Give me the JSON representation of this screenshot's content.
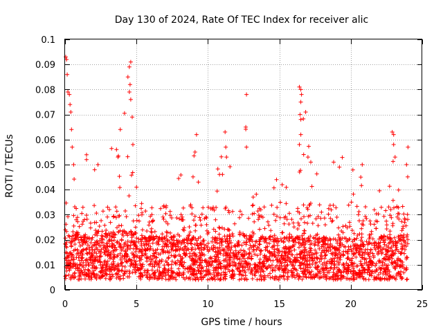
{
  "chart_data": {
    "type": "scatter",
    "title": "Day 130 of 2024, Rate Of TEC Index for receiver alic",
    "xlabel": "GPS time / hours",
    "ylabel": "ROTI / TECUs",
    "xlim": [
      0,
      25
    ],
    "ylim": [
      0,
      0.1
    ],
    "xticks": [
      0,
      5,
      10,
      15,
      20,
      25
    ],
    "xtick_labels": [
      "0",
      "5",
      "10",
      "15",
      "20",
      "25"
    ],
    "yticks": [
      0,
      0.01,
      0.02,
      0.03,
      0.04,
      0.05,
      0.06,
      0.07,
      0.08,
      0.09,
      0.1
    ],
    "ytick_labels": [
      "0",
      "0.01",
      "0.02",
      "0.03",
      "0.04",
      "0.05",
      "0.06",
      "0.07",
      "0.08",
      "0.09",
      "0.1"
    ],
    "grid": true,
    "marker": "+",
    "series": [
      {
        "name": "ROTI",
        "color": "#ff0000",
        "data_extent_hours": [
          0,
          24
        ],
        "envelope": [
          {
            "x": 0.0,
            "base": 0.012,
            "peak": 0.093
          },
          {
            "x": 0.3,
            "base": 0.011,
            "peak": 0.078
          },
          {
            "x": 1.0,
            "base": 0.011,
            "peak": 0.04
          },
          {
            "x": 1.5,
            "base": 0.01,
            "peak": 0.05
          },
          {
            "x": 2.5,
            "base": 0.01,
            "peak": 0.045
          },
          {
            "x": 3.5,
            "base": 0.011,
            "peak": 0.056
          },
          {
            "x": 4.5,
            "base": 0.012,
            "peak": 0.091
          },
          {
            "x": 5.5,
            "base": 0.01,
            "peak": 0.028
          },
          {
            "x": 7.0,
            "base": 0.009,
            "peak": 0.03
          },
          {
            "x": 8.0,
            "base": 0.01,
            "peak": 0.048
          },
          {
            "x": 9.0,
            "base": 0.009,
            "peak": 0.062
          },
          {
            "x": 10.0,
            "base": 0.008,
            "peak": 0.03
          },
          {
            "x": 11.0,
            "base": 0.01,
            "peak": 0.063
          },
          {
            "x": 12.0,
            "base": 0.01,
            "peak": 0.035
          },
          {
            "x": 12.7,
            "base": 0.01,
            "peak": 0.078
          },
          {
            "x": 13.5,
            "base": 0.01,
            "peak": 0.032
          },
          {
            "x": 15.0,
            "base": 0.009,
            "peak": 0.045
          },
          {
            "x": 16.0,
            "base": 0.009,
            "peak": 0.03
          },
          {
            "x": 16.5,
            "base": 0.01,
            "peak": 0.081
          },
          {
            "x": 17.5,
            "base": 0.009,
            "peak": 0.05
          },
          {
            "x": 18.5,
            "base": 0.009,
            "peak": 0.038
          },
          {
            "x": 19.0,
            "base": 0.009,
            "peak": 0.05
          },
          {
            "x": 20.5,
            "base": 0.009,
            "peak": 0.05
          },
          {
            "x": 21.5,
            "base": 0.009,
            "peak": 0.025
          },
          {
            "x": 23.0,
            "base": 0.01,
            "peak": 0.063
          },
          {
            "x": 24.0,
            "base": 0.01,
            "peak": 0.058
          }
        ],
        "outliers": [
          [
            0.05,
            0.093
          ],
          [
            0.1,
            0.092
          ],
          [
            0.15,
            0.086
          ],
          [
            0.2,
            0.079
          ],
          [
            0.3,
            0.078
          ],
          [
            0.35,
            0.074
          ],
          [
            0.4,
            0.071
          ],
          [
            0.45,
            0.064
          ],
          [
            0.5,
            0.057
          ],
          [
            0.6,
            0.05
          ],
          [
            4.4,
            0.085
          ],
          [
            4.5,
            0.089
          ],
          [
            4.6,
            0.091
          ],
          [
            4.55,
            0.082
          ],
          [
            4.5,
            0.079
          ],
          [
            4.6,
            0.076
          ],
          [
            4.7,
            0.069
          ],
          [
            4.75,
            0.058
          ],
          [
            3.6,
            0.056
          ],
          [
            3.7,
            0.053
          ],
          [
            9.2,
            0.062
          ],
          [
            9.1,
            0.055
          ],
          [
            11.2,
            0.063
          ],
          [
            11.25,
            0.057
          ],
          [
            11.3,
            0.053
          ],
          [
            12.7,
            0.078
          ],
          [
            12.65,
            0.065
          ],
          [
            12.7,
            0.057
          ],
          [
            16.4,
            0.081
          ],
          [
            16.5,
            0.08
          ],
          [
            16.55,
            0.078
          ],
          [
            16.5,
            0.075
          ],
          [
            16.45,
            0.07
          ],
          [
            16.5,
            0.068
          ],
          [
            16.5,
            0.062
          ],
          [
            16.4,
            0.058
          ],
          [
            16.7,
            0.054
          ],
          [
            17.0,
            0.053
          ],
          [
            17.2,
            0.051
          ],
          [
            18.8,
            0.051
          ],
          [
            19.2,
            0.049
          ],
          [
            20.8,
            0.05
          ],
          [
            20.7,
            0.045
          ],
          [
            22.9,
            0.063
          ],
          [
            23.0,
            0.062
          ],
          [
            23.0,
            0.058
          ],
          [
            23.1,
            0.053
          ],
          [
            24.0,
            0.057
          ],
          [
            23.9,
            0.05
          ],
          [
            13.7,
            0.032
          ],
          [
            14.8,
            0.044
          ],
          [
            15.2,
            0.042
          ],
          [
            2.3,
            0.05
          ],
          [
            1.5,
            0.052
          ],
          [
            5.0,
            0.041
          ]
        ]
      }
    ]
  }
}
